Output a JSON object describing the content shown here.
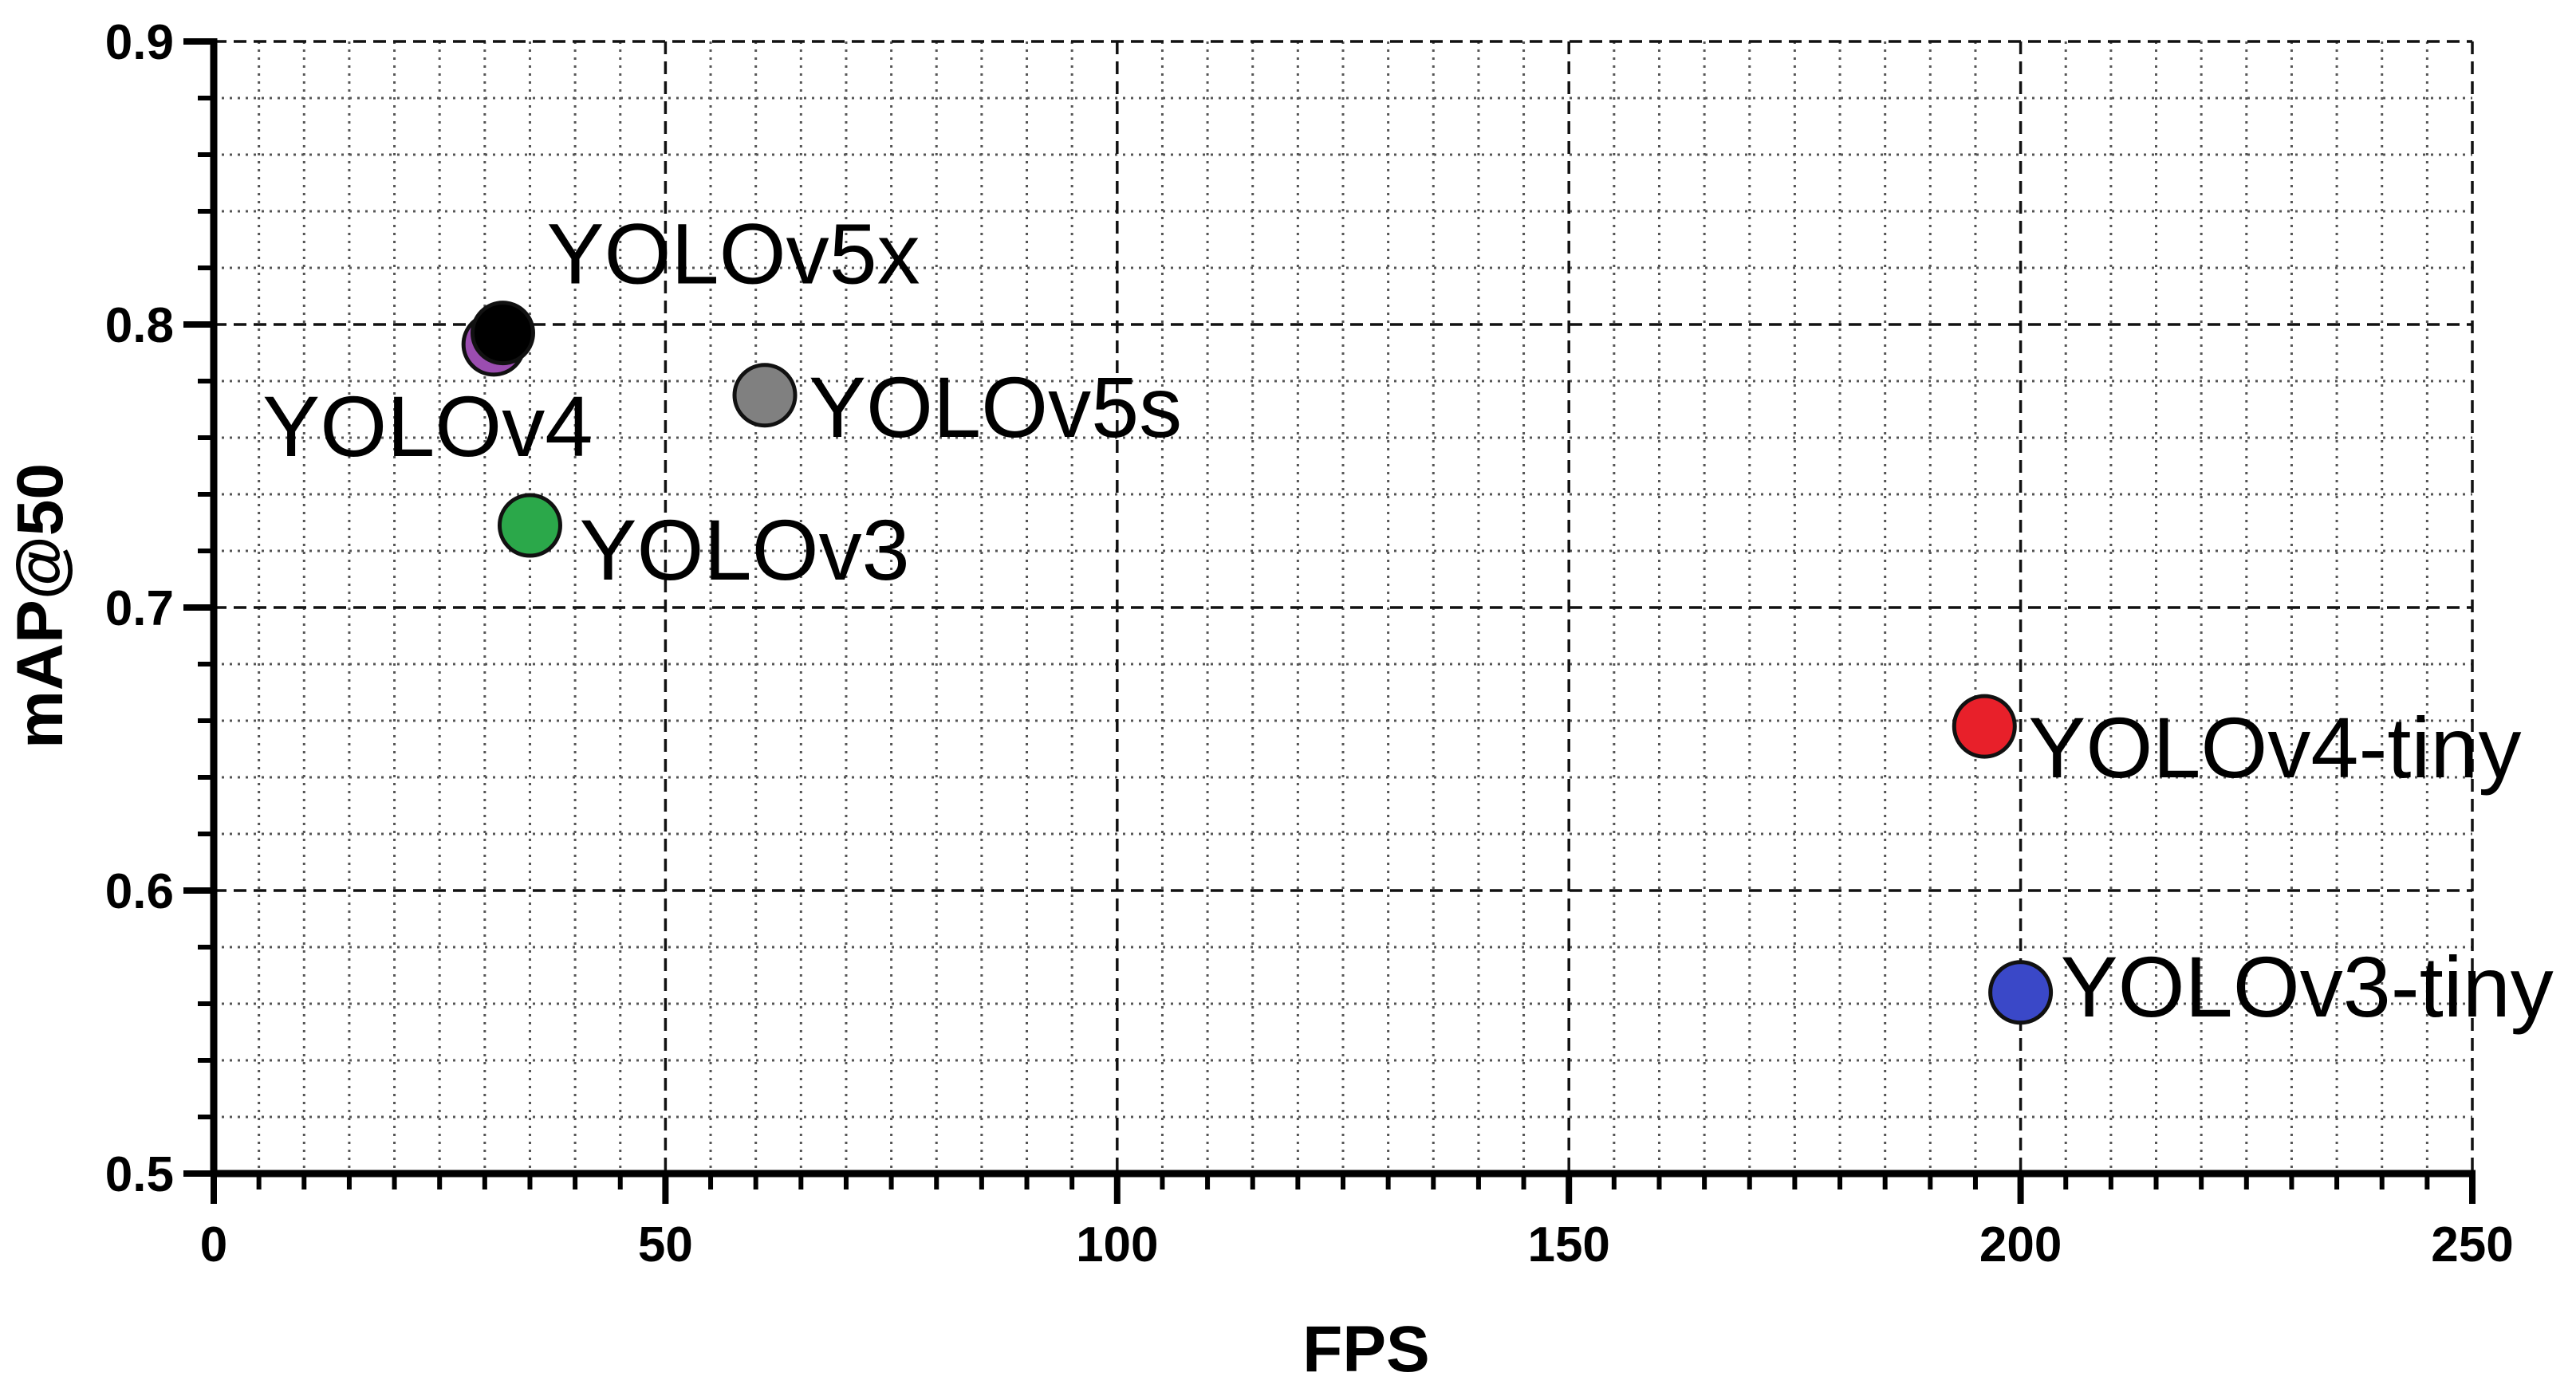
{
  "chart_data": {
    "type": "scatter",
    "title": "",
    "xlabel": "FPS",
    "ylabel": "mAP@50",
    "xlim": [
      0,
      250
    ],
    "ylim": [
      0.5,
      0.9
    ],
    "x_ticks": [
      0,
      50,
      100,
      150,
      200,
      250
    ],
    "x_tick_labels": [
      "0",
      "50",
      "100",
      "150",
      "200",
      "250"
    ],
    "y_ticks": [
      0.5,
      0.6,
      0.7,
      0.8,
      0.9
    ],
    "y_tick_labels": [
      "0.5",
      "0.6",
      "0.7",
      "0.8",
      "0.9"
    ],
    "grid": true,
    "points": [
      {
        "label": "YOLOv4",
        "x": 31,
        "y": 0.793,
        "color": "#9B4DB0"
      },
      {
        "label": "YOLOv5x",
        "x": 32,
        "y": 0.797,
        "color": "#000000"
      },
      {
        "label": "YOLOv5s",
        "x": 61,
        "y": 0.775,
        "color": "#808080"
      },
      {
        "label": "YOLOv3",
        "x": 35,
        "y": 0.729,
        "color": "#2BA84A"
      },
      {
        "label": "YOLOv4-tiny",
        "x": 196,
        "y": 0.658,
        "color": "#E8202A"
      },
      {
        "label": "YOLOv3-tiny",
        "x": 200,
        "y": 0.564,
        "color": "#3A48C8"
      }
    ]
  }
}
